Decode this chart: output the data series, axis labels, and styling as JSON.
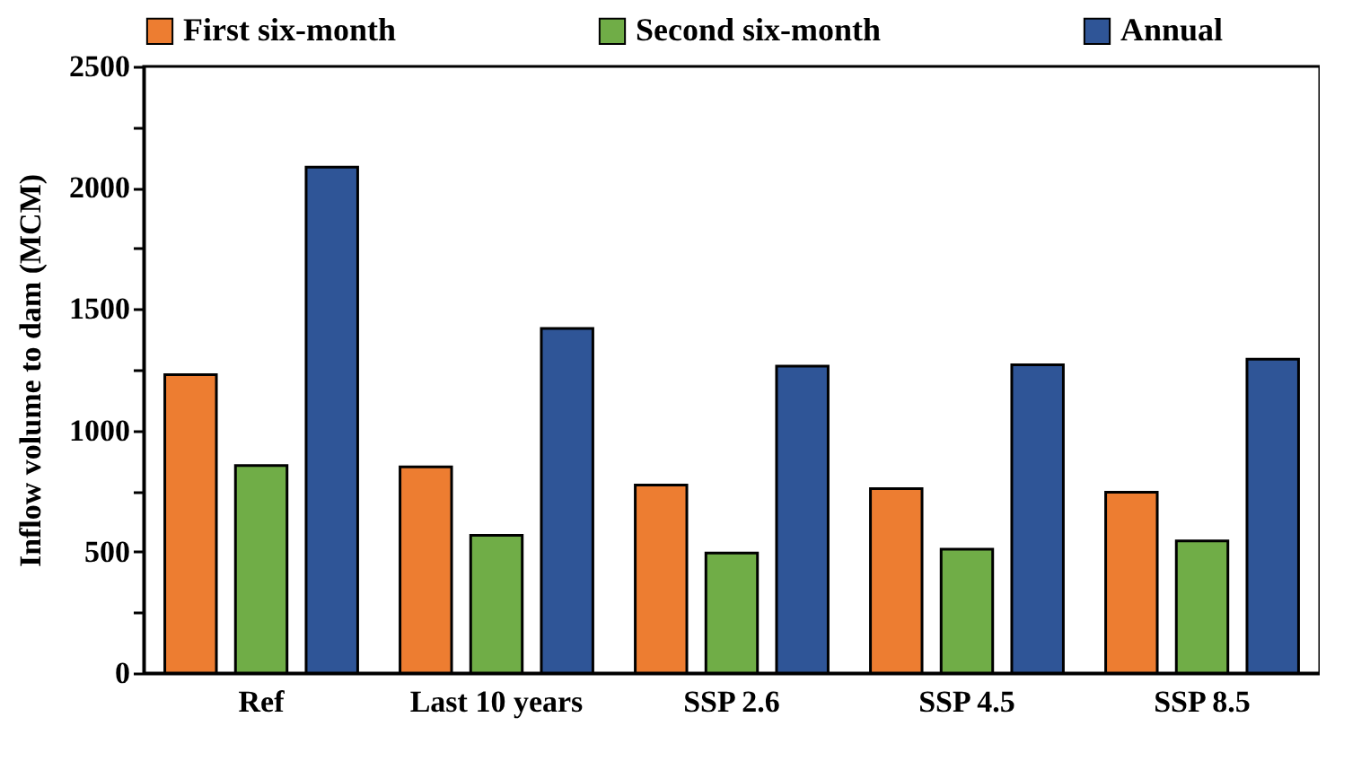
{
  "chart_data": {
    "type": "bar",
    "ylabel": "Inflow volume to dam (MCM)",
    "categories": [
      "Ref",
      "Last 10 years",
      "SSP 2.6",
      "SSP 4.5",
      "SSP 8.5"
    ],
    "series": [
      {
        "name": "First six-month",
        "color": "#ed7d31",
        "values": [
          1230,
          850,
          775,
          760,
          745
        ]
      },
      {
        "name": "Second six-month",
        "color": "#70ad47",
        "values": [
          855,
          568,
          495,
          510,
          545
        ]
      },
      {
        "name": "Annual",
        "color": "#2f5597",
        "values": [
          2085,
          1420,
          1265,
          1270,
          1293
        ]
      }
    ],
    "ylim": [
      0,
      2500
    ],
    "yticks": [
      0,
      {
        "value": 250,
        "label": null
      },
      500,
      {
        "value": 750,
        "label": null
      },
      1000,
      {
        "value": 1250,
        "label": null
      },
      1500,
      {
        "value": 1750,
        "label": null
      },
      2000,
      {
        "value": 2250,
        "label": null
      },
      2500
    ],
    "grid": false,
    "legend": "top"
  }
}
